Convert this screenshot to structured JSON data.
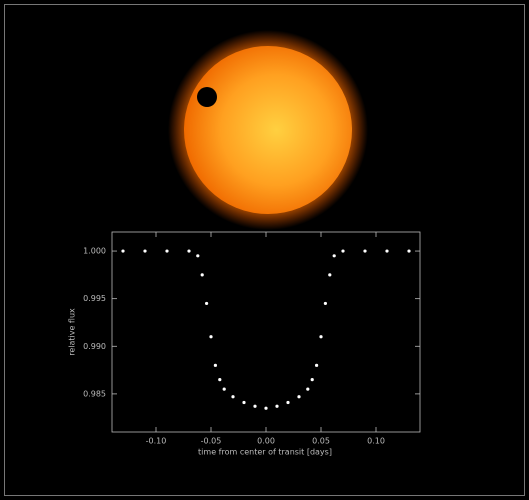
{
  "chart_data": {
    "type": "scatter",
    "xlabel": "time from center of transit [days]",
    "ylabel": "relative flux",
    "color": "#ffffff",
    "x": [
      -0.13,
      -0.11,
      -0.09,
      -0.07,
      -0.062,
      -0.058,
      -0.054,
      -0.05,
      -0.046,
      -0.042,
      -0.038,
      -0.03,
      -0.02,
      -0.01,
      0,
      0.01,
      0.02,
      0.03,
      0.038,
      0.042,
      0.046,
      0.05,
      0.054,
      0.058,
      0.062,
      0.07,
      0.09,
      0.11,
      0.13
    ],
    "values": [
      1.0,
      1.0,
      1.0,
      1.0,
      0.9995,
      0.9975,
      0.9945,
      0.991,
      0.988,
      0.9865,
      0.9855,
      0.9847,
      0.9841,
      0.9837,
      0.9835,
      0.9837,
      0.9841,
      0.9847,
      0.9855,
      0.9865,
      0.988,
      0.991,
      0.9945,
      0.9975,
      0.9995,
      1.0,
      1.0,
      1.0,
      1.0
    ],
    "xlim": [
      -0.14,
      0.14
    ],
    "ylim": [
      0.981,
      1.002
    ],
    "xticks": [
      {
        "value": -0.1,
        "label": "-0.10"
      },
      {
        "value": -0.05,
        "label": "-0.05"
      },
      {
        "value": 0,
        "label": "0.00"
      },
      {
        "value": 0.05,
        "label": "0.05"
      },
      {
        "value": 0.1,
        "label": "0.10"
      }
    ],
    "yticks": [
      {
        "value": 1,
        "label": "1.000"
      },
      0.995,
      {
        "value": 0.99,
        "label": "0.990"
      },
      0.985
    ]
  }
}
